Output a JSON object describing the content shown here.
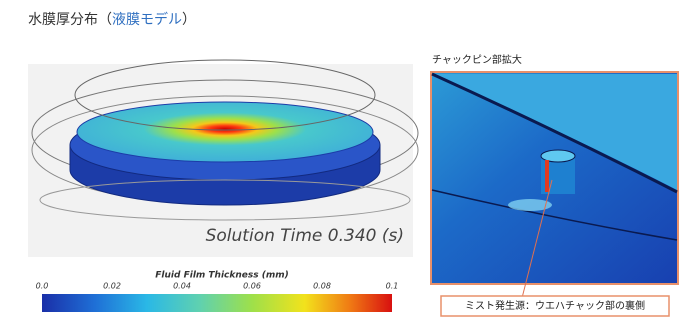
{
  "header": {
    "title_prefix": "水膜厚分布（",
    "title_highlight": "液膜モデル",
    "title_suffix": "）"
  },
  "simulation": {
    "solution_time": "Solution Time 0.340 (s)"
  },
  "colorbar": {
    "title": "Fluid Film Thickness (mm)",
    "range": [
      0,
      0.1
    ],
    "ticks": [
      {
        "value": 0,
        "label": "0.0"
      },
      0.02,
      0.04,
      0.06,
      0.08,
      0.1
    ]
  },
  "zoom": {
    "title": "チャックピン部拡大",
    "callout": "ミスト発生源：ウエハチャック部の裏側"
  }
}
